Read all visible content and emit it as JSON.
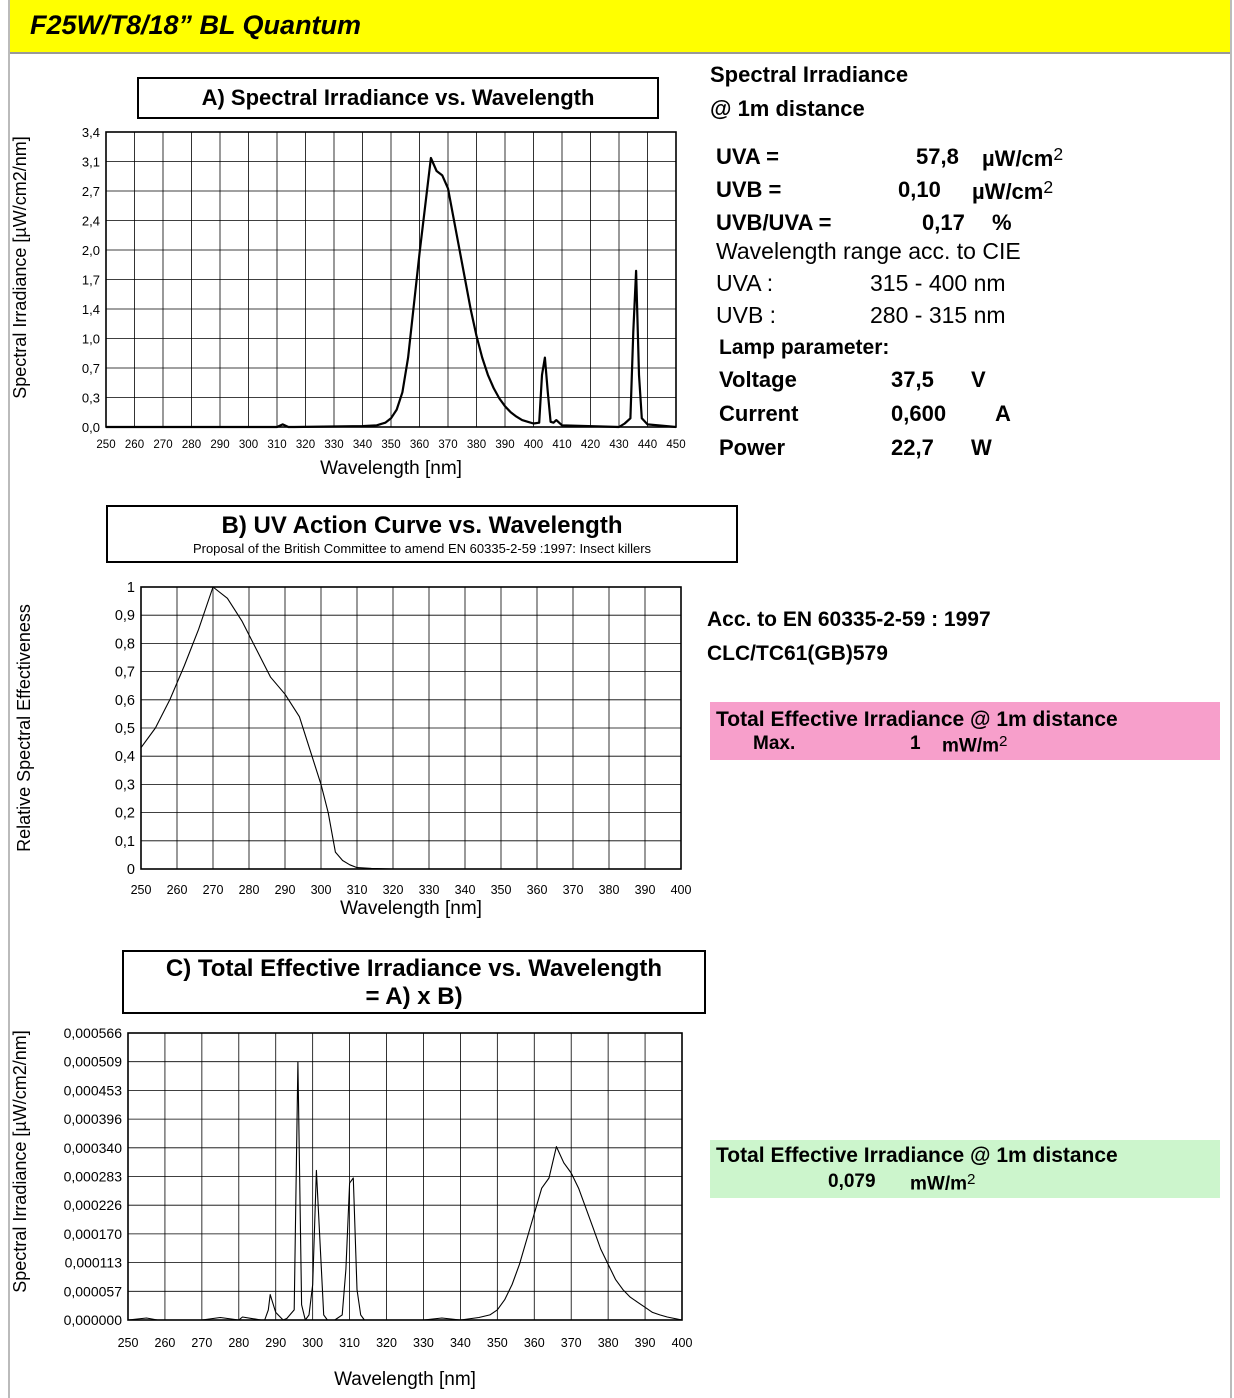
{
  "header": {
    "title": "F25W/T8/18” BL Quantum"
  },
  "chart_data": [
    {
      "type": "line",
      "title": "A)  Spectral Irradiance  vs.  Wavelength",
      "xlabel": "Wavelength  [nm]",
      "ylabel": "Spectral Irradiance  [µW/cm2/nm]",
      "xlim": [
        250,
        450
      ],
      "ylim": [
        0,
        3.4
      ],
      "x_ticks": [
        "250",
        "260",
        "270",
        "280",
        "290",
        "300",
        "310",
        "320",
        "330",
        "340",
        "350",
        "360",
        "370",
        "380",
        "390",
        "400",
        "410",
        "420",
        "430",
        "440",
        "450"
      ],
      "y_ticks": [
        {
          "v": 0,
          "l": "0,0"
        },
        {
          "v": 0.34,
          "l": "0,3"
        },
        {
          "v": 0.68,
          "l": "0,7"
        },
        {
          "v": 1.02,
          "l": "1,0"
        },
        {
          "v": 1.36,
          "l": "1,4"
        },
        {
          "v": 1.7,
          "l": "1,7"
        },
        {
          "v": 2.04,
          "l": "2,0"
        },
        {
          "v": 2.38,
          "l": "2,4"
        },
        {
          "v": 2.72,
          "l": "2,7"
        },
        {
          "v": 3.06,
          "l": "3,1"
        },
        {
          "v": 3.4,
          "l": "3,4"
        }
      ],
      "grid": true,
      "series": [
        {
          "x": [
            250,
            300,
            310,
            312,
            314,
            316,
            340,
            345,
            348,
            350,
            352,
            354,
            356,
            358,
            360,
            362,
            364,
            366,
            368,
            370,
            372,
            374,
            376,
            378,
            380,
            382,
            384,
            386,
            388,
            390,
            392,
            394,
            396,
            398,
            400,
            402,
            403,
            404,
            405,
            406,
            407,
            408,
            410,
            430,
            432,
            434,
            435,
            436,
            437,
            438,
            440,
            450
          ],
          "y": [
            0,
            0,
            0,
            0.03,
            0,
            0,
            0.01,
            0.02,
            0.05,
            0.1,
            0.2,
            0.4,
            0.8,
            1.4,
            2.0,
            2.55,
            3.1,
            2.95,
            2.9,
            2.75,
            2.4,
            2.05,
            1.7,
            1.35,
            1.05,
            0.8,
            0.6,
            0.45,
            0.33,
            0.24,
            0.17,
            0.12,
            0.08,
            0.06,
            0.04,
            0.05,
            0.6,
            0.8,
            0.4,
            0.06,
            0.05,
            0.08,
            0.02,
            0,
            0.04,
            0.1,
            1.1,
            1.8,
            0.6,
            0.1,
            0.03,
            0
          ]
        }
      ]
    },
    {
      "type": "line",
      "title": "B)  UV Action Curve  vs.  Wavelength",
      "subtitle": "Proposal of the British Committee to amend EN 60335-2-59 :1997: Insect killers",
      "xlabel": "Wavelength  [nm]",
      "ylabel": "Relative Spectral Effectiveness",
      "xlim": [
        250,
        400
      ],
      "ylim": [
        0,
        1
      ],
      "x_ticks": [
        "250",
        "260",
        "270",
        "280",
        "290",
        "300",
        "310",
        "320",
        "330",
        "340",
        "350",
        "360",
        "370",
        "380",
        "390",
        "400"
      ],
      "y_ticks": [
        {
          "v": 0,
          "l": "0"
        },
        {
          "v": 0.1,
          "l": "0,1"
        },
        {
          "v": 0.2,
          "l": "0,2"
        },
        {
          "v": 0.3,
          "l": "0,3"
        },
        {
          "v": 0.4,
          "l": "0,4"
        },
        {
          "v": 0.5,
          "l": "0,5"
        },
        {
          "v": 0.6,
          "l": "0,6"
        },
        {
          "v": 0.7,
          "l": "0,7"
        },
        {
          "v": 0.8,
          "l": "0,8"
        },
        {
          "v": 0.9,
          "l": "0,9"
        },
        {
          "v": 1,
          "l": "1"
        }
      ],
      "grid": true,
      "series": [
        {
          "x": [
            250,
            254,
            258,
            262,
            266,
            270,
            274,
            278,
            282,
            286,
            290,
            294,
            297,
            300,
            302,
            304,
            306,
            308,
            310,
            314,
            320,
            400
          ],
          "y": [
            0.43,
            0.5,
            0.6,
            0.72,
            0.85,
            1.0,
            0.96,
            0.88,
            0.78,
            0.68,
            0.62,
            0.54,
            0.42,
            0.3,
            0.2,
            0.06,
            0.03,
            0.015,
            0.005,
            0.002,
            0,
            0
          ]
        }
      ]
    },
    {
      "type": "line",
      "title": "C) Total Effective Irradiance  vs.  Wavelength",
      "subtitle": "= A)  x  B)",
      "xlabel": "Wavelength  [nm]",
      "ylabel": "Spectral Irradiance  [µW/cm2/nm]",
      "xlim": [
        250,
        400
      ],
      "ylim": [
        0,
        0.000566
      ],
      "x_ticks": [
        "250",
        "260",
        "270",
        "280",
        "290",
        "300",
        "310",
        "320",
        "330",
        "340",
        "350",
        "360",
        "370",
        "380",
        "390",
        "400"
      ],
      "y_ticks": [
        {
          "v": 0,
          "l": "0,000000"
        },
        {
          "v": 5.66e-05,
          "l": "0,000057"
        },
        {
          "v": 0.0001132,
          "l": "0,000113"
        },
        {
          "v": 0.0001698,
          "l": "0,000170"
        },
        {
          "v": 0.0002264,
          "l": "0,000226"
        },
        {
          "v": 0.000283,
          "l": "0,000283"
        },
        {
          "v": 0.0003396,
          "l": "0,000340"
        },
        {
          "v": 0.0003962,
          "l": "0,000396"
        },
        {
          "v": 0.0004528,
          "l": "0,000453"
        },
        {
          "v": 0.0005094,
          "l": "0,000509"
        },
        {
          "v": 0.000566,
          "l": "0,000566"
        }
      ],
      "grid": true,
      "series": [
        {
          "x": [
            250,
            255,
            258,
            270,
            275,
            276,
            280,
            281,
            286,
            287,
            288,
            288.5,
            290,
            292,
            293,
            295,
            296,
            297,
            298,
            299,
            300,
            301,
            302,
            303,
            304,
            306,
            308,
            309,
            310,
            311,
            312,
            313,
            314,
            316,
            320,
            330,
            335,
            340,
            345,
            348,
            350,
            352,
            354,
            356,
            358,
            360,
            362,
            364,
            366,
            368,
            370,
            372,
            374,
            376,
            378,
            380,
            382,
            384,
            386,
            388,
            390,
            392,
            394,
            396,
            398,
            400
          ],
          "y": [
            0,
            4e-06,
            0,
            0,
            5e-06,
            4e-06,
            0,
            6e-06,
            0,
            0,
            2e-05,
            5e-05,
            1.5e-05,
            0,
            3e-06,
            2e-05,
            0.000509,
            3e-05,
            0,
            1e-05,
            7e-05,
            0.000295,
            0.00015,
            1e-05,
            0,
            0,
            1e-05,
            0.0001,
            0.00027,
            0.00028,
            6e-05,
            1e-05,
            0,
            0,
            0,
            0,
            4e-06,
            0,
            5e-06,
            1e-05,
            2e-05,
            4e-05,
            7e-05,
            0.00011,
            0.00016,
            0.00021,
            0.00026,
            0.00028,
            0.000342,
            0.00031,
            0.00029,
            0.00026,
            0.00022,
            0.00018,
            0.00014,
            0.00011,
            8e-05,
            6e-05,
            4.5e-05,
            3.5e-05,
            2.5e-05,
            1.5e-05,
            1e-05,
            6e-06,
            3e-06,
            0
          ]
        }
      ]
    }
  ],
  "panel_a": {
    "heading1": "Spectral Irradiance",
    "heading2": "@ 1m distance",
    "uva_label": "UVA =",
    "uva_value": "57,8",
    "uva_unit": "µW/cm",
    "uva_sup": "2",
    "uvb_label": "UVB =",
    "uvb_value": "0,10",
    "uvb_unit": "µW/cm",
    "uvb_sup": "2",
    "ratio_label": "UVB/UVA =",
    "ratio_value": "0,17",
    "ratio_unit": "%",
    "cie": "Wavelength range acc. to CIE",
    "uva_range_label": "UVA :",
    "uva_range": "315 - 400 nm",
    "uvb_range_label": "UVB :",
    "uvb_range": "280 - 315 nm",
    "lamp_heading": "Lamp parameter:",
    "voltage_label": "Voltage",
    "voltage_value": "37,5",
    "voltage_unit": "V",
    "current_label": "Current",
    "current_value": "0,600",
    "current_unit": "A",
    "power_label": "Power",
    "power_value": "22,7",
    "power_unit": "W"
  },
  "panel_b": {
    "ref1": "Acc. to EN 60335-2-59 : 1997",
    "ref2": "CLC/TC61(GB)579",
    "total_label": "Total Effective Irradiance @ 1m distance",
    "max_label": "Max.",
    "max_value": "1",
    "max_unit": "mW/m",
    "max_sup": "2"
  },
  "panel_c": {
    "total_label": "Total Effective Irradiance @ 1m distance",
    "value": "0,079",
    "unit": "mW/m",
    "sup": "2"
  },
  "colors": {
    "header": "#ffff00",
    "pink": "#f79fcb",
    "green": "#ccf5cc"
  }
}
